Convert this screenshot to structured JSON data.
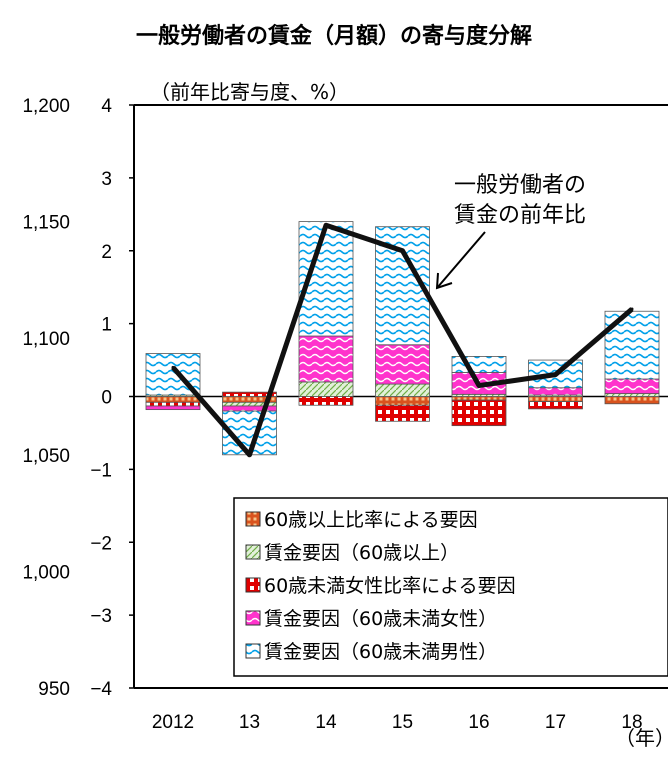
{
  "chart_data": {
    "type": "bar",
    "title": "一般労働者の賃金（月額）の寄与度分解",
    "ylabel": "（前年比寄与度、%）",
    "xlabel": "（年）",
    "categories": [
      "2012",
      "13",
      "14",
      "15",
      "16",
      "17",
      "18"
    ],
    "ylim": [
      -4,
      4
    ],
    "y2lim": [
      950,
      1200
    ],
    "yticks": [
      "4",
      "3",
      "2",
      "1",
      "0",
      "−1",
      "−2",
      "−3",
      "−4"
    ],
    "y2ticks": [
      "1,200",
      "1,150",
      "1,100",
      "1,050",
      "1,000",
      "950"
    ],
    "series": [
      {
        "name": "60歳以上比率による要因",
        "values": [
          -0.08,
          -0.08,
          0,
          -0.12,
          -0.05,
          -0.07,
          -0.1
        ],
        "color": "#c0504d",
        "pattern": "grid-orange"
      },
      {
        "name": "賃金要因（60歳以上）",
        "values": [
          0.02,
          -0.05,
          0.2,
          0.17,
          0.03,
          0.02,
          0.04
        ],
        "color": "#70ad47",
        "pattern": "diag-green"
      },
      {
        "name": "60歳未満女性比率による要因",
        "values": [
          -0.05,
          0.06,
          -0.12,
          -0.22,
          -0.35,
          -0.1,
          0
        ],
        "color": "#e00000",
        "pattern": "grid-red"
      },
      {
        "name": "賃金要因（60歳未満女性）",
        "values": [
          -0.05,
          -0.07,
          0.63,
          0.54,
          0.3,
          0.1,
          0.2
        ],
        "color": "#ff33cc",
        "pattern": "wave-pink"
      },
      {
        "name": "賃金要因（60歳未満男性）",
        "values": [
          0.57,
          -0.6,
          1.57,
          1.62,
          0.22,
          0.38,
          0.93
        ],
        "color": "#00b0f0",
        "pattern": "wave-blue"
      }
    ],
    "line": {
      "name": "一般労働者の賃金の前年比",
      "values": [
        0.4,
        -0.8,
        2.35,
        2.0,
        0.15,
        0.3,
        1.2
      ]
    },
    "annotation": {
      "lines": [
        "一般労働者の",
        "賃金の前年比"
      ]
    },
    "legend_position": "bottom-right",
    "grid": false
  }
}
